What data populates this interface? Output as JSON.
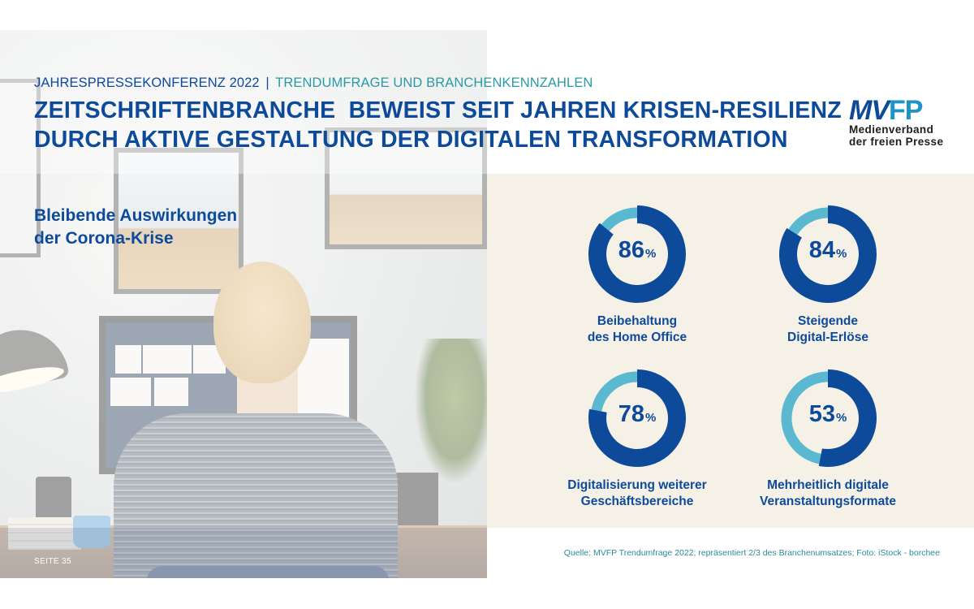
{
  "header": {
    "kicker_part1": "JAHRESPRESSEKONFERENZ 2022",
    "kicker_separator": "|",
    "kicker_part2": "TRENDUMFRAGE UND BRANCHENKENNZAHLEN",
    "title_line1": "ZEITSCHRIFTENBRANCHE  BEWEIST SEIT JAHREN KRISEN-RESILIENZ",
    "title_line2": "DURCH AKTIVE GESTALTUNG DER DIGITALEN TRANSFORMATION"
  },
  "logo": {
    "mark_part1": "MV",
    "mark_part2": "FP",
    "line1": "Medienverband",
    "line2": "der freien Presse"
  },
  "subtitle": {
    "line1": "Bleibende Auswirkungen",
    "line2": "der Corona-Krise"
  },
  "colors": {
    "primary": "#0d4a9a",
    "secondary": "#5ab8d0",
    "panel_bg": "#f6f1e7",
    "accent_teal": "#2a9aa6"
  },
  "chart_data": {
    "type": "pie",
    "subtype": "donut",
    "title": "Bleibende Auswirkungen der Corona-Krise",
    "items": [
      {
        "label": "Beibehaltung des Home Office",
        "label_line1": "Beibehaltung",
        "label_line2": "des Home Office",
        "value": 86,
        "display": "86",
        "unit": "%"
      },
      {
        "label": "Steigende Digital-Erlöse",
        "label_line1": "Steigende",
        "label_line2": "Digital-Erlöse",
        "value": 84,
        "display": "84",
        "unit": "%"
      },
      {
        "label": "Digitalisierung weiterer Geschäftsbereiche",
        "label_line1": "Digitalisierung weiterer",
        "label_line2": "Geschäftsbereiche",
        "value": 78,
        "display": "78",
        "unit": "%"
      },
      {
        "label": "Mehrheitlich digitale Veranstaltungsformate",
        "label_line1": "Mehrheitlich digitale",
        "label_line2": "Veranstaltungsformate",
        "value": 53,
        "display": "53",
        "unit": "%"
      }
    ],
    "layout": "2x2 grid",
    "legend": "none"
  },
  "footer": {
    "page_label": "SEITE 35",
    "source": "Quelle: MVFP Trendumfrage 2022; repräsentiert 2/3 des Branchenumsatzes; Foto: iStock - borchee"
  }
}
